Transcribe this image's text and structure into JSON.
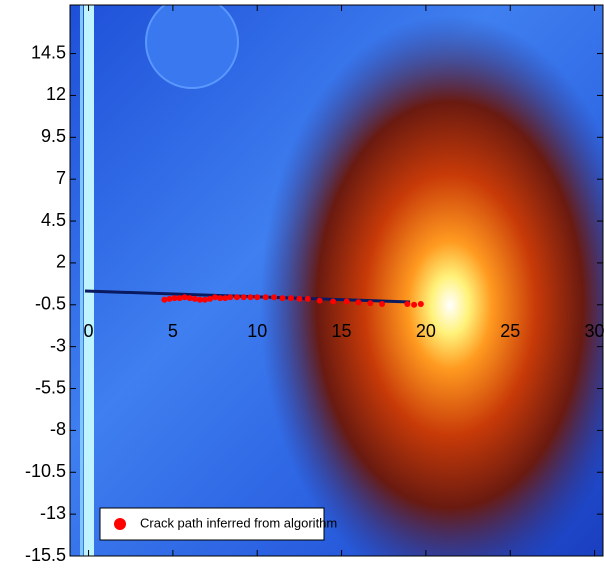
{
  "chart_data": {
    "type": "scatter",
    "xlim": [
      -1.1,
      30.5
    ],
    "ylim": [
      -15.5,
      17.4
    ],
    "xticks": [
      0,
      5,
      10,
      15,
      20,
      25,
      30
    ],
    "yticks": [
      14.5,
      12,
      9.5,
      7,
      4.5,
      2,
      -0.5,
      -3,
      -5.5,
      -8,
      -10.5,
      -13,
      -15.5
    ],
    "legend": "lower left",
    "series": [
      {
        "name": "Crack path inferred from algorithm",
        "color": "#ff0000",
        "x": [
          4.5,
          4.8,
          5.1,
          5.4,
          5.7,
          6.0,
          6.3,
          6.6,
          6.9,
          7.2,
          7.5,
          7.8,
          8.1,
          8.4,
          8.8,
          9.2,
          9.6,
          10.0,
          10.5,
          11.0,
          11.5,
          12.0,
          12.5,
          13.0,
          13.7,
          14.5,
          15.3,
          16.0,
          16.7,
          17.4,
          18.9,
          19.3,
          19.7
        ],
        "values": [
          -0.2,
          -0.15,
          -0.1,
          -0.1,
          -0.05,
          -0.1,
          -0.15,
          -0.2,
          -0.2,
          -0.15,
          -0.05,
          -0.1,
          -0.1,
          -0.05,
          -0.05,
          -0.05,
          -0.05,
          -0.05,
          -0.05,
          -0.05,
          -0.1,
          -0.1,
          -0.15,
          -0.15,
          -0.25,
          -0.3,
          -0.3,
          -0.35,
          -0.4,
          -0.45,
          -0.45,
          -0.5,
          -0.45
        ]
      }
    ]
  }
}
